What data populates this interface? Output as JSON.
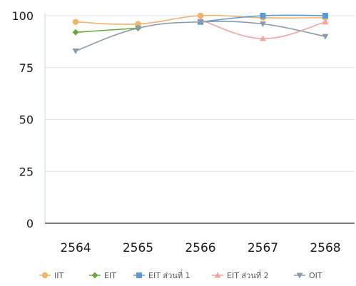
{
  "chart_data": {
    "type": "line",
    "categories": [
      "2564",
      "2565",
      "2566",
      "2567",
      "2568"
    ],
    "ylim": [
      0,
      100
    ],
    "yticks": [
      "0",
      "25",
      "50",
      "75",
      "100"
    ],
    "grid": true,
    "legend_position": "bottom",
    "series": [
      {
        "name": "IIT",
        "color": "#f5b26b",
        "marker": "circle",
        "values": [
          97,
          96,
          100,
          99,
          99
        ]
      },
      {
        "name": "EIT",
        "color": "#6aaa3a",
        "marker": "diamond",
        "values": [
          92,
          94,
          null,
          null,
          null
        ]
      },
      {
        "name": "EIT ส่วนที่ 1",
        "color": "#5b9bd5",
        "marker": "square",
        "values": [
          null,
          null,
          97,
          100,
          100
        ]
      },
      {
        "name": "EIT ส่วนที่ 2",
        "color": "#f4a3a0",
        "marker": "triangle-up",
        "values": [
          null,
          null,
          98,
          89,
          97
        ]
      },
      {
        "name": "OIT",
        "color": "#8a9bb0",
        "marker": "triangle-down",
        "values": [
          83,
          94,
          97,
          96,
          90
        ]
      }
    ]
  }
}
